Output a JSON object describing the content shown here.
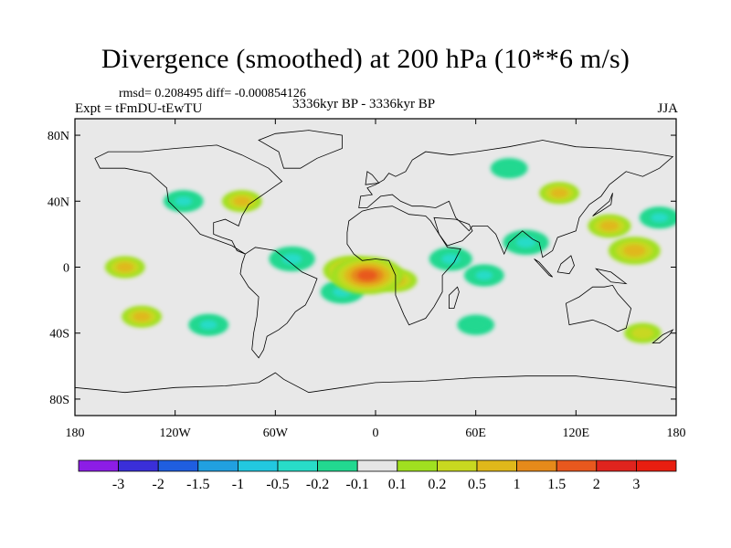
{
  "title": "Divergence (smoothed) at 200 hPa (10**6 m/s)",
  "stats": "rmsd= 0.208495 diff= -0.000854126",
  "experiment": "Expt = tFmDU-tEwTU",
  "period": "3336kyr BP - 3336kyr BP",
  "season": "JJA",
  "axes": {
    "lon_ticks": [
      {
        "value": -180,
        "label": "180"
      },
      {
        "value": -120,
        "label": "120W"
      },
      {
        "value": -60,
        "label": "60W"
      },
      {
        "value": 0,
        "label": "0"
      },
      {
        "value": 60,
        "label": "60E"
      },
      {
        "value": 120,
        "label": "120E"
      },
      {
        "value": 180,
        "label": "180"
      }
    ],
    "lat_ticks": [
      {
        "value": 80,
        "label": "80N"
      },
      {
        "value": 40,
        "label": "40N"
      },
      {
        "value": 0,
        "label": "0"
      },
      {
        "value": -40,
        "label": "40S"
      },
      {
        "value": -80,
        "label": "80S"
      }
    ],
    "lon_range": [
      -180,
      180
    ],
    "lat_range": [
      -90,
      90
    ]
  },
  "colorbar": {
    "labels": [
      "-3",
      "-2",
      "-1.5",
      "-1",
      "-0.5",
      "-0.2",
      "-0.1",
      "0.1",
      "0.2",
      "0.5",
      "1",
      "1.5",
      "2",
      "3"
    ],
    "colors": [
      "#8c1de6",
      "#3a2fd9",
      "#1f5ee0",
      "#21a0e0",
      "#22c8e0",
      "#28dcc8",
      "#22d890",
      "#e6e6e6",
      "#a0e020",
      "#c8d820",
      "#e0b81a",
      "#e68a1a",
      "#e8581e",
      "#e0241e",
      "#e81e10"
    ]
  },
  "chart_data": {
    "type": "heatmap",
    "title": "Divergence (smoothed) at 200 hPa (10**6 m/s)",
    "projection": "cylindrical equidistant",
    "x_range": [
      -180,
      180
    ],
    "y_range": [
      -90,
      90
    ],
    "levels": [
      -3,
      -2,
      -1.5,
      -1,
      -0.5,
      -0.2,
      -0.1,
      0.1,
      0.2,
      0.5,
      1,
      1.5,
      2,
      3
    ],
    "anomalies": [
      {
        "lon": -5,
        "lat": -5,
        "value": 1.6
      },
      {
        "lon": -15,
        "lat": -2,
        "value": 1.0
      },
      {
        "lon": 12,
        "lat": -8,
        "value": 0.6
      },
      {
        "lon": -20,
        "lat": -15,
        "value": -0.6
      },
      {
        "lon": -50,
        "lat": 5,
        "value": -0.7
      },
      {
        "lon": 45,
        "lat": 5,
        "value": -0.6
      },
      {
        "lon": 65,
        "lat": -5,
        "value": -0.5
      },
      {
        "lon": 155,
        "lat": 10,
        "value": 0.9
      },
      {
        "lon": 140,
        "lat": 25,
        "value": 0.6
      },
      {
        "lon": 110,
        "lat": 45,
        "value": 0.5
      },
      {
        "lon": 90,
        "lat": 15,
        "value": -0.7
      },
      {
        "lon": 170,
        "lat": 30,
        "value": -0.5
      },
      {
        "lon": -80,
        "lat": 40,
        "value": 0.5
      },
      {
        "lon": -115,
        "lat": 40,
        "value": -0.5
      },
      {
        "lon": -150,
        "lat": 0,
        "value": 0.5
      },
      {
        "lon": -140,
        "lat": -30,
        "value": 0.5
      },
      {
        "lon": -100,
        "lat": -35,
        "value": -0.5
      },
      {
        "lon": 60,
        "lat": -35,
        "value": -0.4
      },
      {
        "lon": 80,
        "lat": 60,
        "value": -0.4
      },
      {
        "lon": 160,
        "lat": -40,
        "value": 0.4
      }
    ]
  }
}
